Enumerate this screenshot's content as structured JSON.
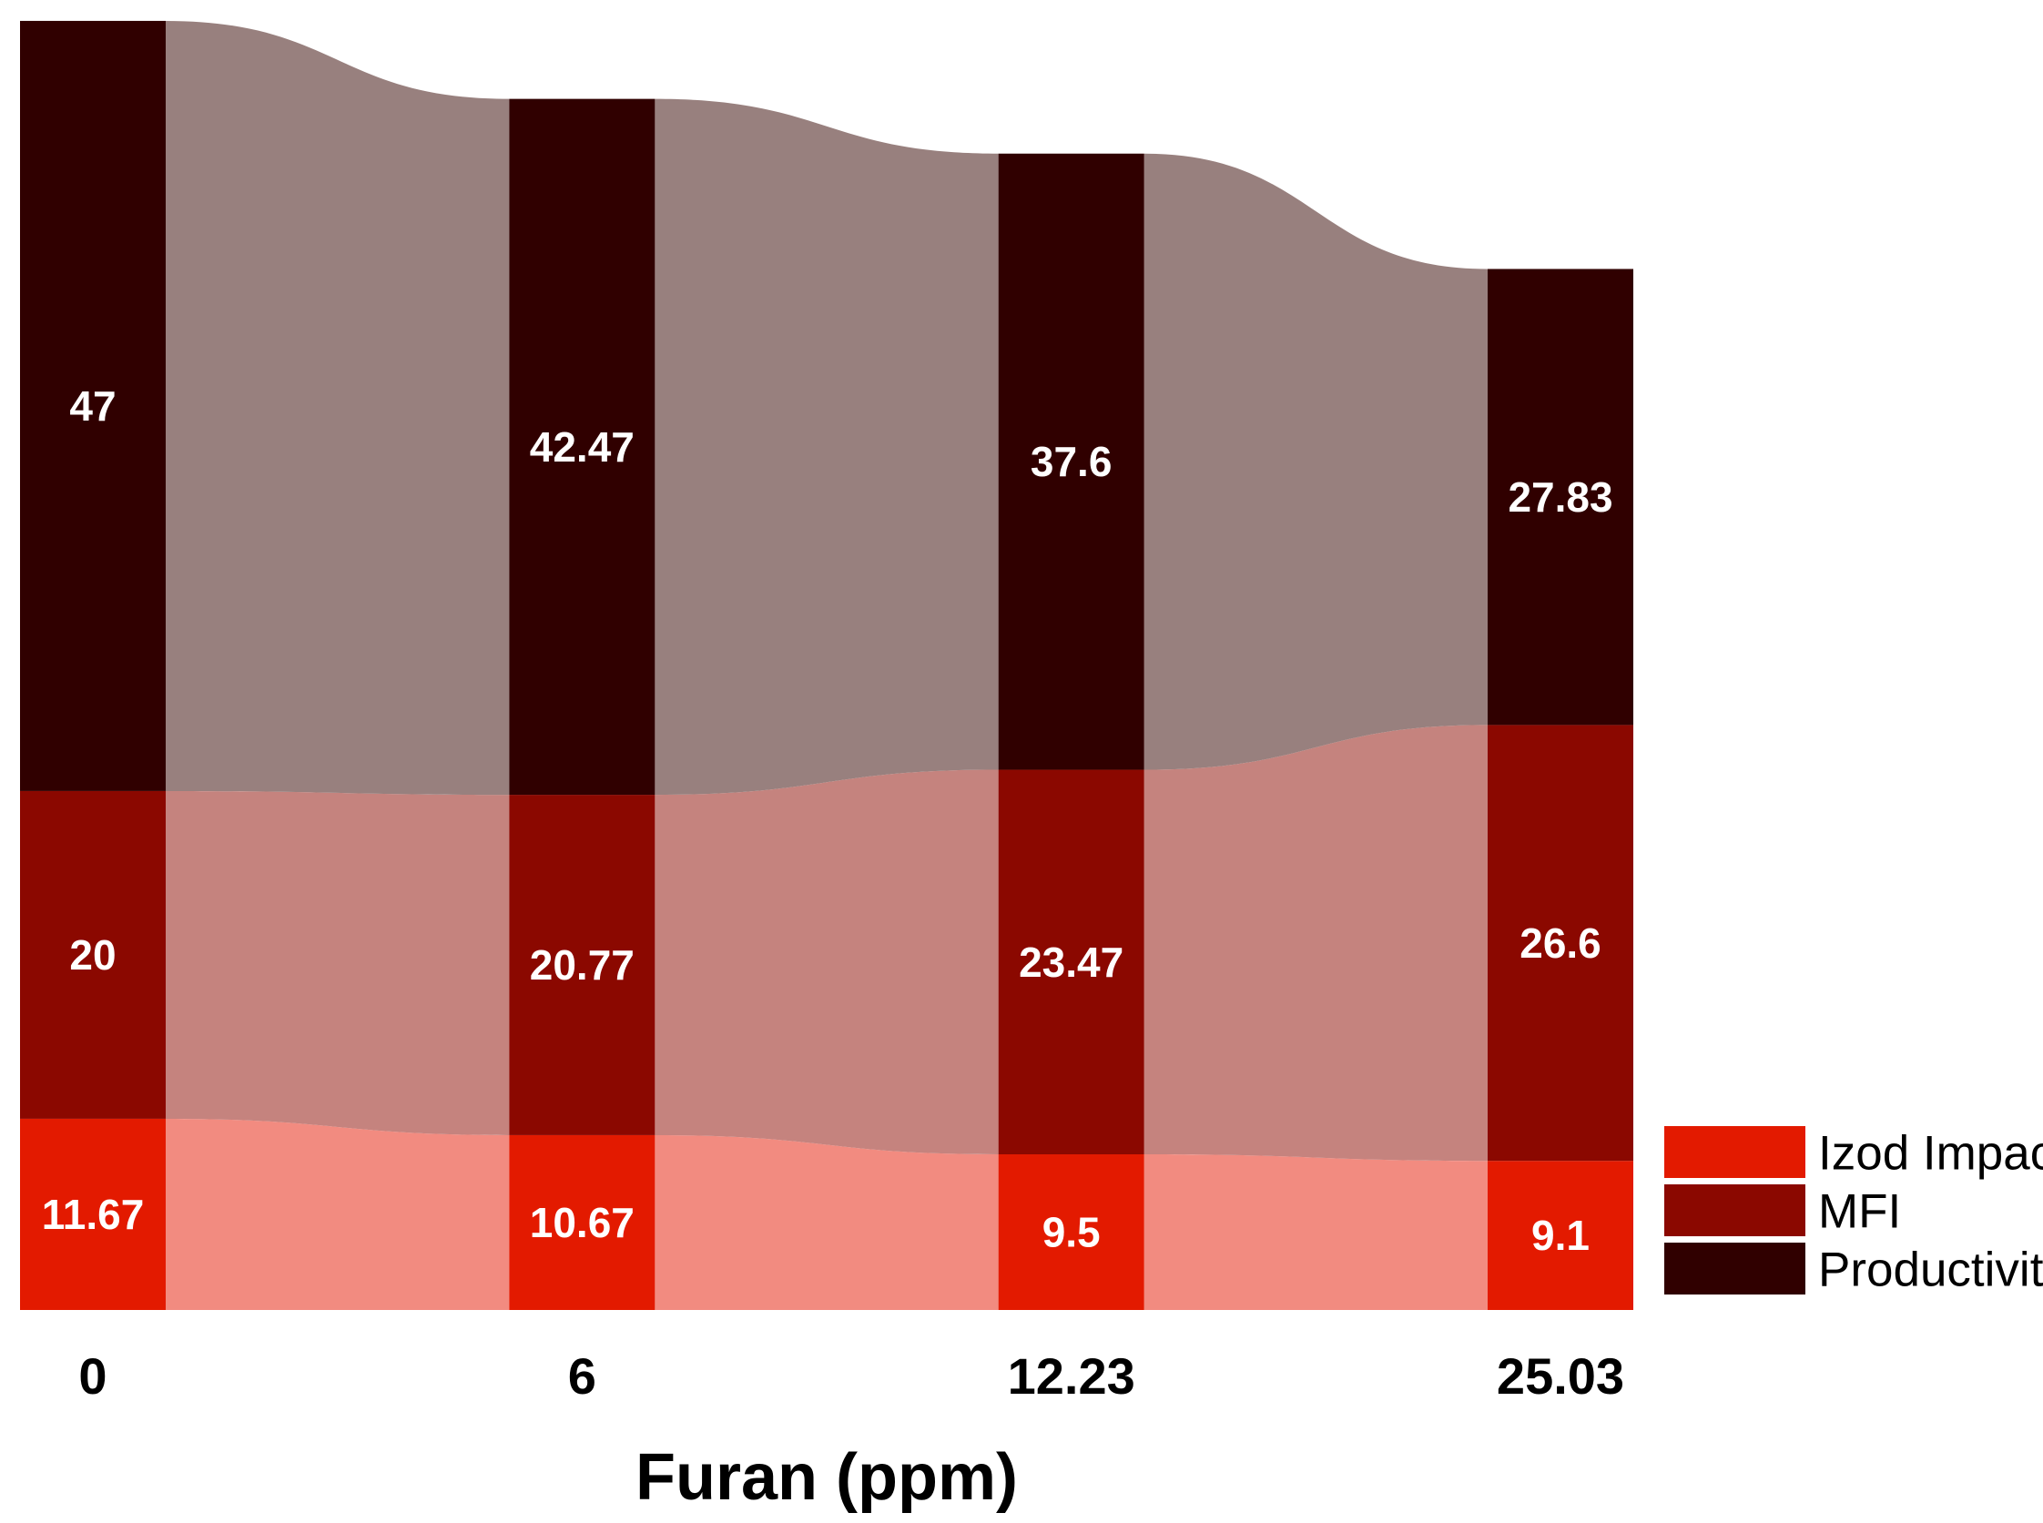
{
  "chart_data": {
    "type": "alluvial stacked bar",
    "xlabel": "Furan (ppm)",
    "categories": [
      "0",
      "6",
      "12.23",
      "25.03"
    ],
    "series": [
      {
        "name": "Izod Impact",
        "values": [
          11.67,
          10.67,
          9.5,
          9.1
        ],
        "color": "#e31a00",
        "flow_color": "#f28b80"
      },
      {
        "name": "MFI",
        "values": [
          20,
          20.77,
          23.47,
          26.6
        ],
        "color": "#8b0800",
        "flow_color": "#c5837e"
      },
      {
        "name": "Productivity",
        "values": [
          47,
          42.47,
          37.6,
          27.83
        ],
        "color": "#300000",
        "flow_color": "#98807e"
      }
    ],
    "legend": {
      "position": "right-bottom",
      "order": [
        "Izod Impact",
        "MFI",
        "Productivity"
      ]
    },
    "grid": false
  }
}
